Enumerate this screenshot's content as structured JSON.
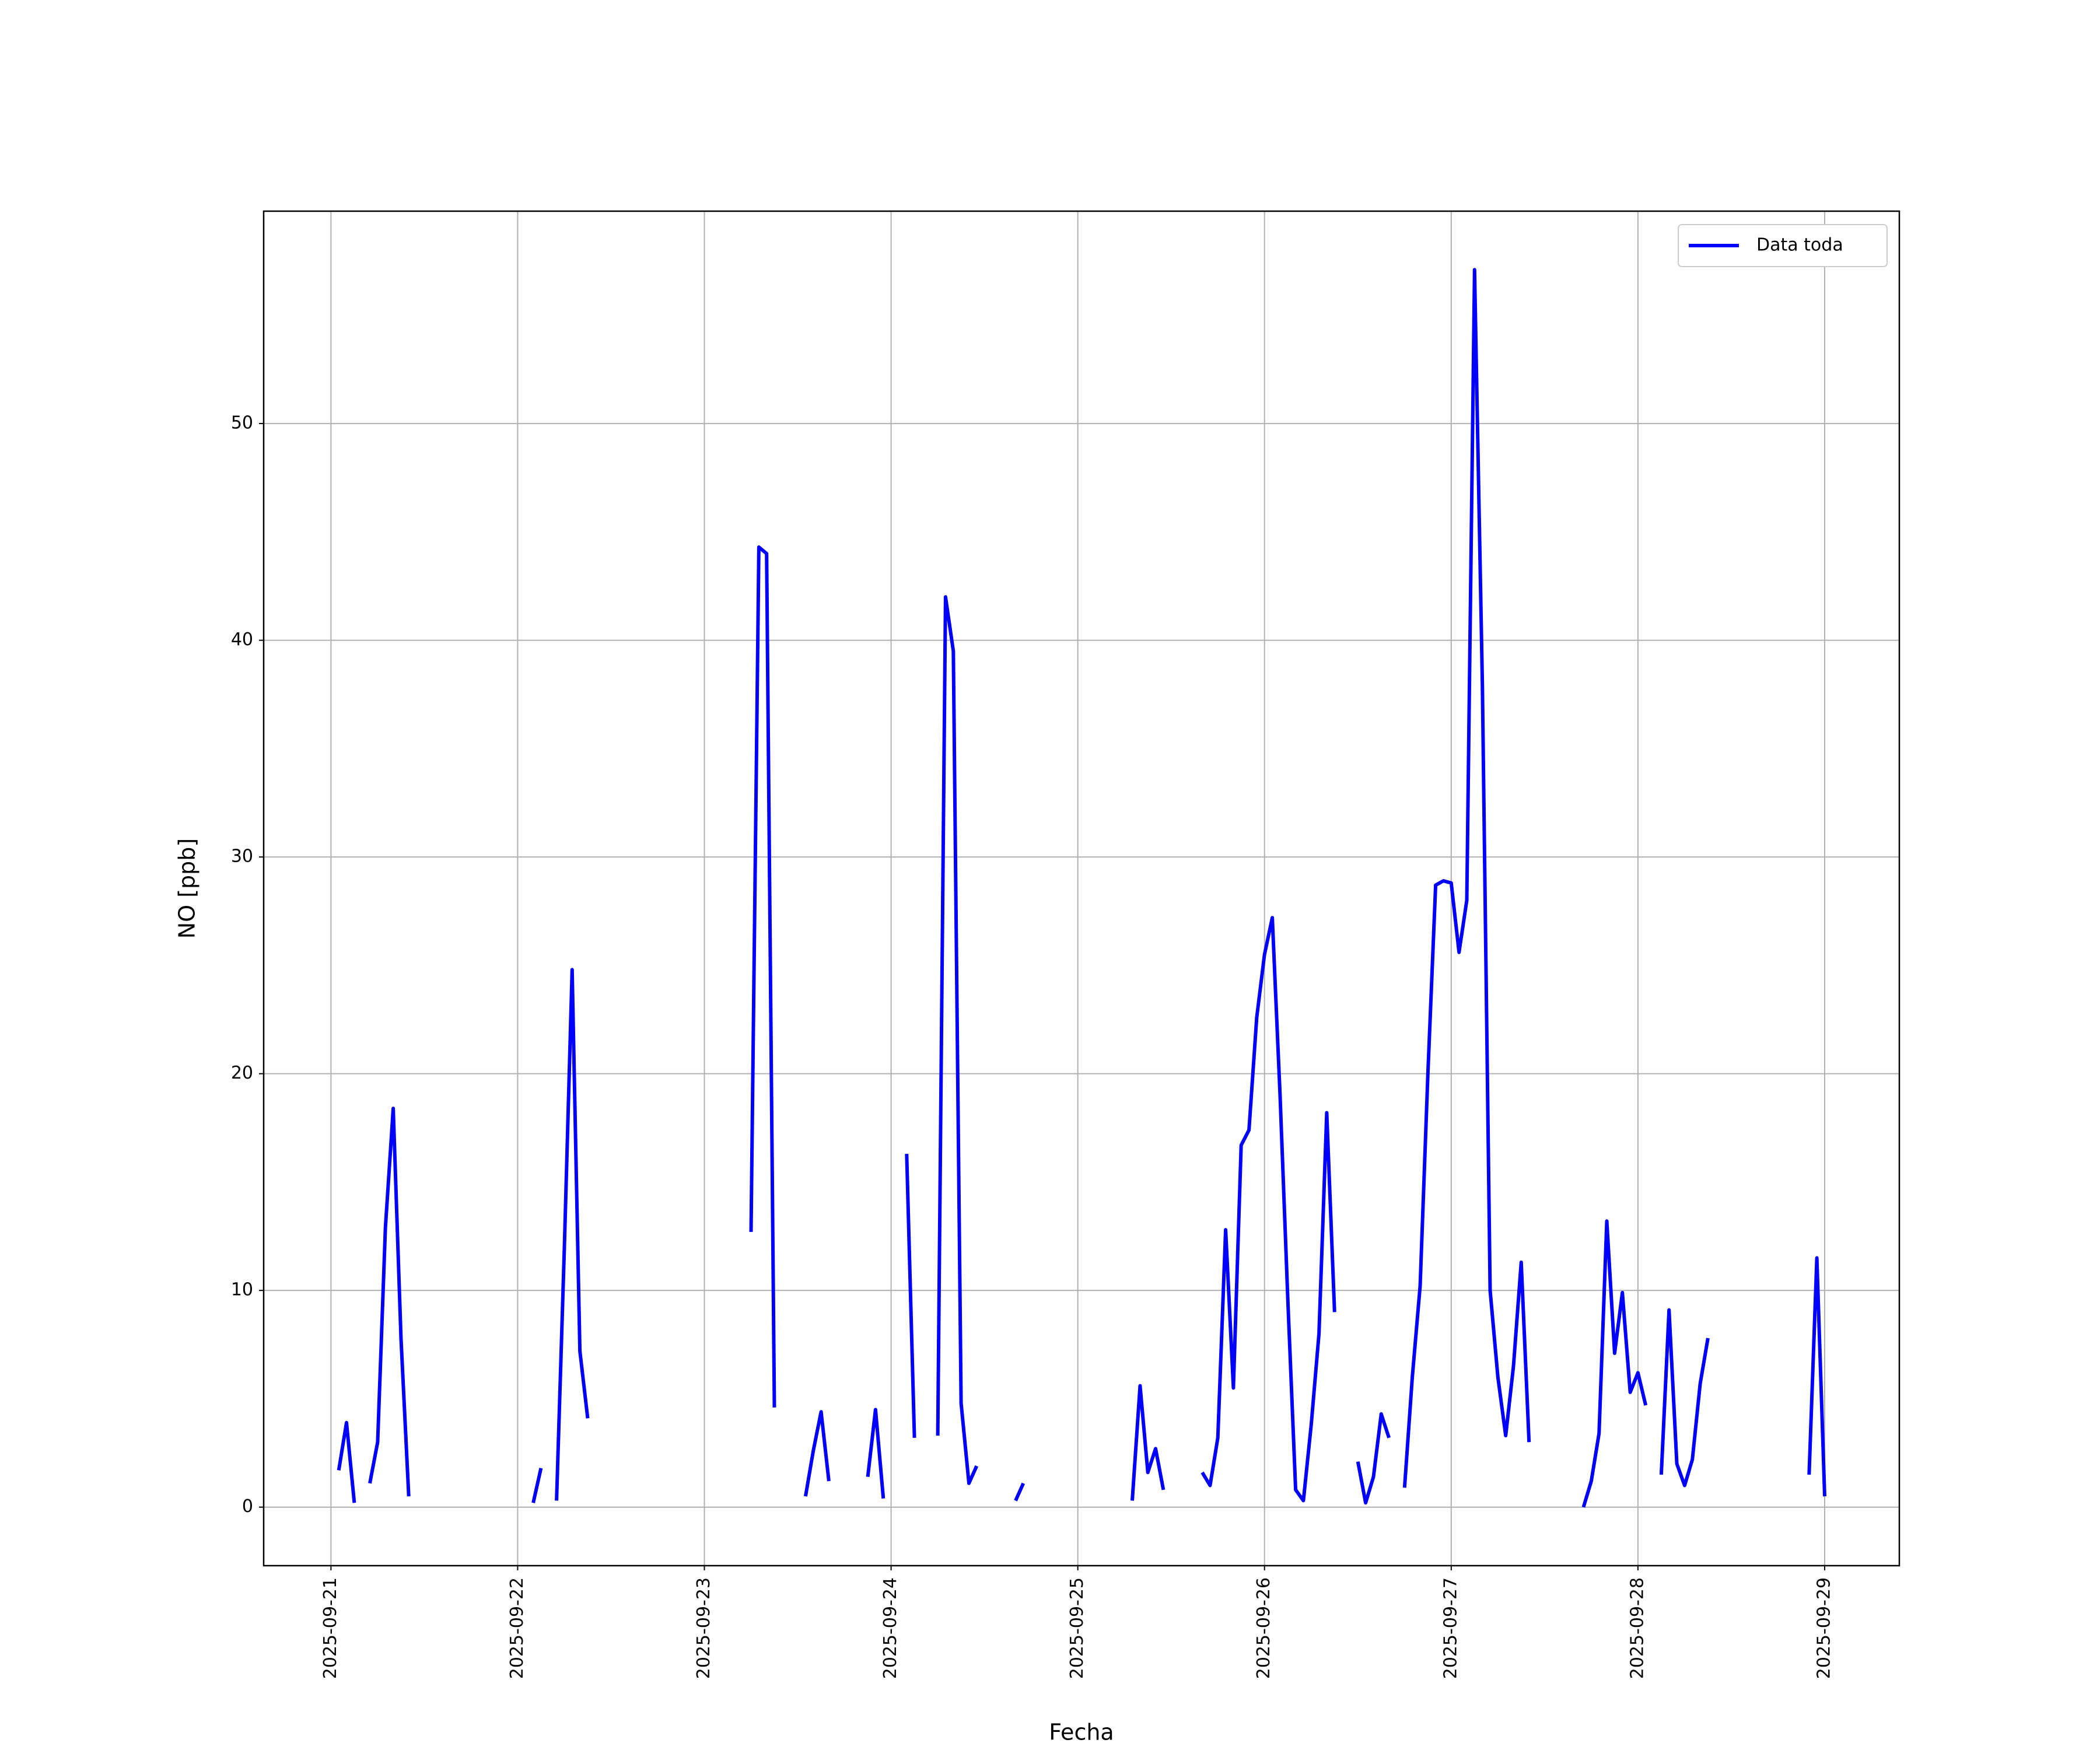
{
  "chart_data": {
    "type": "line",
    "xlabel": "Fecha",
    "ylabel": "NO [ppb]",
    "x": [
      "2025-09-21T01:00",
      "2025-09-21T02:00",
      "2025-09-21T03:00",
      "2025-09-21T04:00",
      "2025-09-21T05:00",
      "2025-09-21T06:00",
      "2025-09-21T07:00",
      "2025-09-21T08:00",
      "2025-09-21T09:00",
      "2025-09-21T10:00",
      "2025-09-21T11:00",
      "2025-09-22T02:00",
      "2025-09-22T03:00",
      "2025-09-22T04:00",
      "2025-09-22T05:00",
      "2025-09-22T06:00",
      "2025-09-22T07:00",
      "2025-09-22T08:00",
      "2025-09-22T09:00",
      "2025-09-22T10:00",
      "2025-09-23T06:00",
      "2025-09-23T07:00",
      "2025-09-23T08:00",
      "2025-09-23T09:00",
      "2025-09-23T10:00",
      "2025-09-23T13:00",
      "2025-09-23T14:00",
      "2025-09-23T15:00",
      "2025-09-23T16:00",
      "2025-09-23T17:00",
      "2025-09-23T21:00",
      "2025-09-23T22:00",
      "2025-09-23T23:00",
      "2025-09-24T00:00",
      "2025-09-24T02:00",
      "2025-09-24T03:00",
      "2025-09-24T04:00",
      "2025-09-24T06:00",
      "2025-09-24T07:00",
      "2025-09-24T08:00",
      "2025-09-24T09:00",
      "2025-09-24T10:00",
      "2025-09-24T11:00",
      "2025-09-24T12:00",
      "2025-09-24T16:00",
      "2025-09-24T17:00",
      "2025-09-24T18:00",
      "2025-09-25T07:00",
      "2025-09-25T08:00",
      "2025-09-25T09:00",
      "2025-09-25T10:00",
      "2025-09-25T11:00",
      "2025-09-25T12:00",
      "2025-09-25T16:00",
      "2025-09-25T17:00",
      "2025-09-25T18:00",
      "2025-09-25T19:00",
      "2025-09-25T20:00",
      "2025-09-25T21:00",
      "2025-09-25T22:00",
      "2025-09-25T23:00",
      "2025-09-26T00:00",
      "2025-09-26T01:00",
      "2025-09-26T02:00",
      "2025-09-26T03:00",
      "2025-09-26T04:00",
      "2025-09-26T05:00",
      "2025-09-26T06:00",
      "2025-09-26T07:00",
      "2025-09-26T08:00",
      "2025-09-26T09:00",
      "2025-09-26T10:00",
      "2025-09-26T12:00",
      "2025-09-26T13:00",
      "2025-09-26T14:00",
      "2025-09-26T15:00",
      "2025-09-26T16:00",
      "2025-09-26T17:00",
      "2025-09-26T18:00",
      "2025-09-26T19:00",
      "2025-09-26T20:00",
      "2025-09-26T21:00",
      "2025-09-26T22:00",
      "2025-09-26T23:00",
      "2025-09-27T00:00",
      "2025-09-27T01:00",
      "2025-09-27T02:00",
      "2025-09-27T03:00",
      "2025-09-27T04:00",
      "2025-09-27T05:00",
      "2025-09-27T06:00",
      "2025-09-27T07:00",
      "2025-09-27T08:00",
      "2025-09-27T09:00",
      "2025-09-27T10:00",
      "2025-09-27T11:00",
      "2025-09-27T17:00",
      "2025-09-27T18:00",
      "2025-09-27T19:00",
      "2025-09-27T20:00",
      "2025-09-27T21:00",
      "2025-09-27T22:00",
      "2025-09-27T23:00",
      "2025-09-28T00:00",
      "2025-09-28T01:00",
      "2025-09-28T02:00",
      "2025-09-28T03:00",
      "2025-09-28T04:00",
      "2025-09-28T05:00",
      "2025-09-28T06:00",
      "2025-09-28T07:00",
      "2025-09-28T08:00",
      "2025-09-28T09:00",
      "2025-09-28T10:00",
      "2025-09-28T22:00",
      "2025-09-28T23:00",
      "2025-09-29T00:00"
    ],
    "series": [
      {
        "name": "Data toda",
        "color": "#0000ff",
        "values": [
          1.7,
          3.9,
          0.2,
          null,
          1.1,
          3.0,
          12.9,
          18.4,
          7.8,
          0.5,
          null,
          0.2,
          1.8,
          null,
          0.3,
          12.0,
          24.8,
          7.2,
          4.1,
          null,
          12.7,
          44.3,
          44.0,
          4.6,
          null,
          0.5,
          2.6,
          4.4,
          1.2,
          null,
          1.4,
          4.5,
          0.4,
          null,
          16.3,
          3.2,
          null,
          3.3,
          42.0,
          39.5,
          4.8,
          1.1,
          1.9,
          null,
          0.3,
          1.1,
          null,
          0.3,
          5.6,
          1.6,
          2.7,
          0.8,
          null,
          1.6,
          1.0,
          3.2,
          12.8,
          5.5,
          16.7,
          17.4,
          22.6,
          25.5,
          27.2,
          19.0,
          9.5,
          0.8,
          0.3,
          3.8,
          8.0,
          18.2,
          9.0,
          null,
          2.1,
          0.2,
          1.4,
          4.3,
          3.2,
          null,
          0.9,
          6.0,
          10.2,
          20.0,
          28.7,
          28.9,
          28.8,
          25.6,
          28.0,
          57.1,
          38.0,
          10.0,
          6.0,
          3.3,
          6.5,
          11.3,
          3.0,
          null,
          0.0,
          1.2,
          3.4,
          13.2,
          7.1,
          9.9,
          5.3,
          6.2,
          4.7,
          null,
          1.5,
          9.1,
          2.0,
          1.0,
          2.2,
          5.7,
          7.8,
          null,
          1.5,
          11.5,
          0.5
        ]
      }
    ],
    "xlim": [
      "2025-09-20T15:21",
      "2025-09-29T09:36"
    ],
    "xticks": [
      "2025-09-21",
      "2025-09-22",
      "2025-09-23",
      "2025-09-24",
      "2025-09-25",
      "2025-09-26",
      "2025-09-27",
      "2025-09-28",
      "2025-09-29"
    ],
    "ylim": [
      -2.7,
      59.8
    ],
    "yticks": [
      0,
      10,
      20,
      30,
      40,
      50
    ],
    "grid": true,
    "legend": "upper right"
  }
}
